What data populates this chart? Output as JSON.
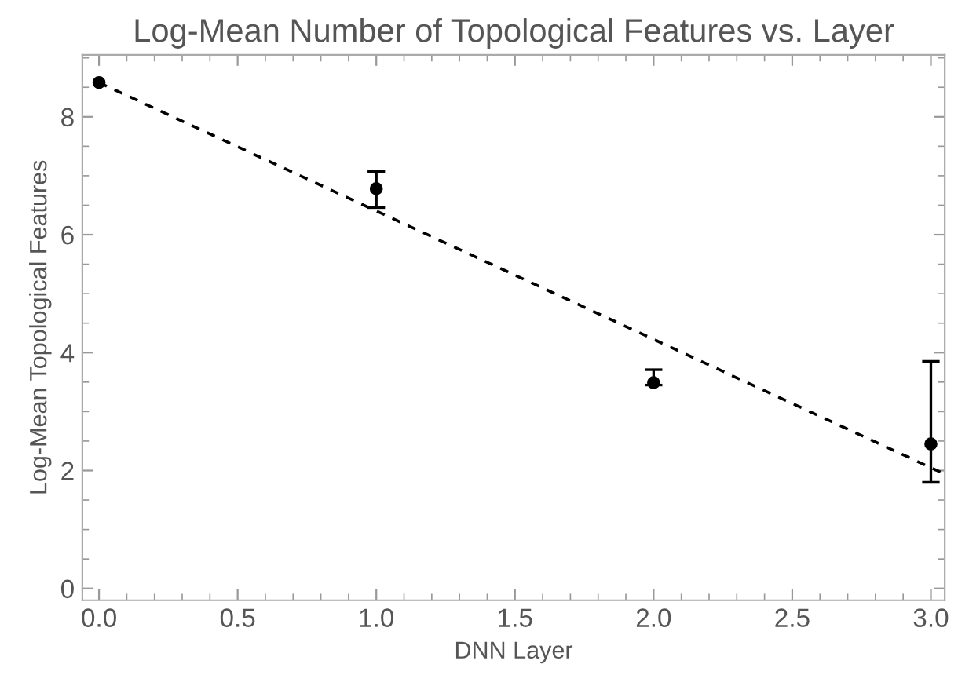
{
  "chart_data": {
    "type": "scatter",
    "title": "Log-Mean Number of Topological Features vs. Layer",
    "xlabel": "DNN Layer",
    "ylabel": "Log-Mean Topological Features",
    "xlim": [
      -0.06,
      3.05
    ],
    "ylim": [
      -0.2,
      9.05
    ],
    "xticks": [
      {
        "value": 0,
        "label": "0.0"
      },
      0.5,
      {
        "value": 1,
        "label": "1.0"
      },
      1.5,
      {
        "value": 2,
        "label": "2.0"
      },
      2.5,
      {
        "value": 3,
        "label": "3.0"
      }
    ],
    "yticks": [
      0,
      2,
      4,
      6,
      8
    ],
    "grid": false,
    "series": [
      {
        "marker": "circle",
        "color": "#000000",
        "x": [
          0,
          1,
          2,
          3
        ],
        "values": [
          8.58,
          6.78,
          3.49,
          2.45
        ],
        "errors": [
          null,
          [
            6.46,
            7.07
          ],
          [
            3.45,
            3.71
          ],
          [
            1.8,
            3.85
          ]
        ]
      },
      {
        "type": "line",
        "color": "#000000",
        "line_style": "dashed",
        "x": [
          0,
          3.05
        ],
        "values": [
          8.58,
          1.94
        ]
      }
    ]
  }
}
